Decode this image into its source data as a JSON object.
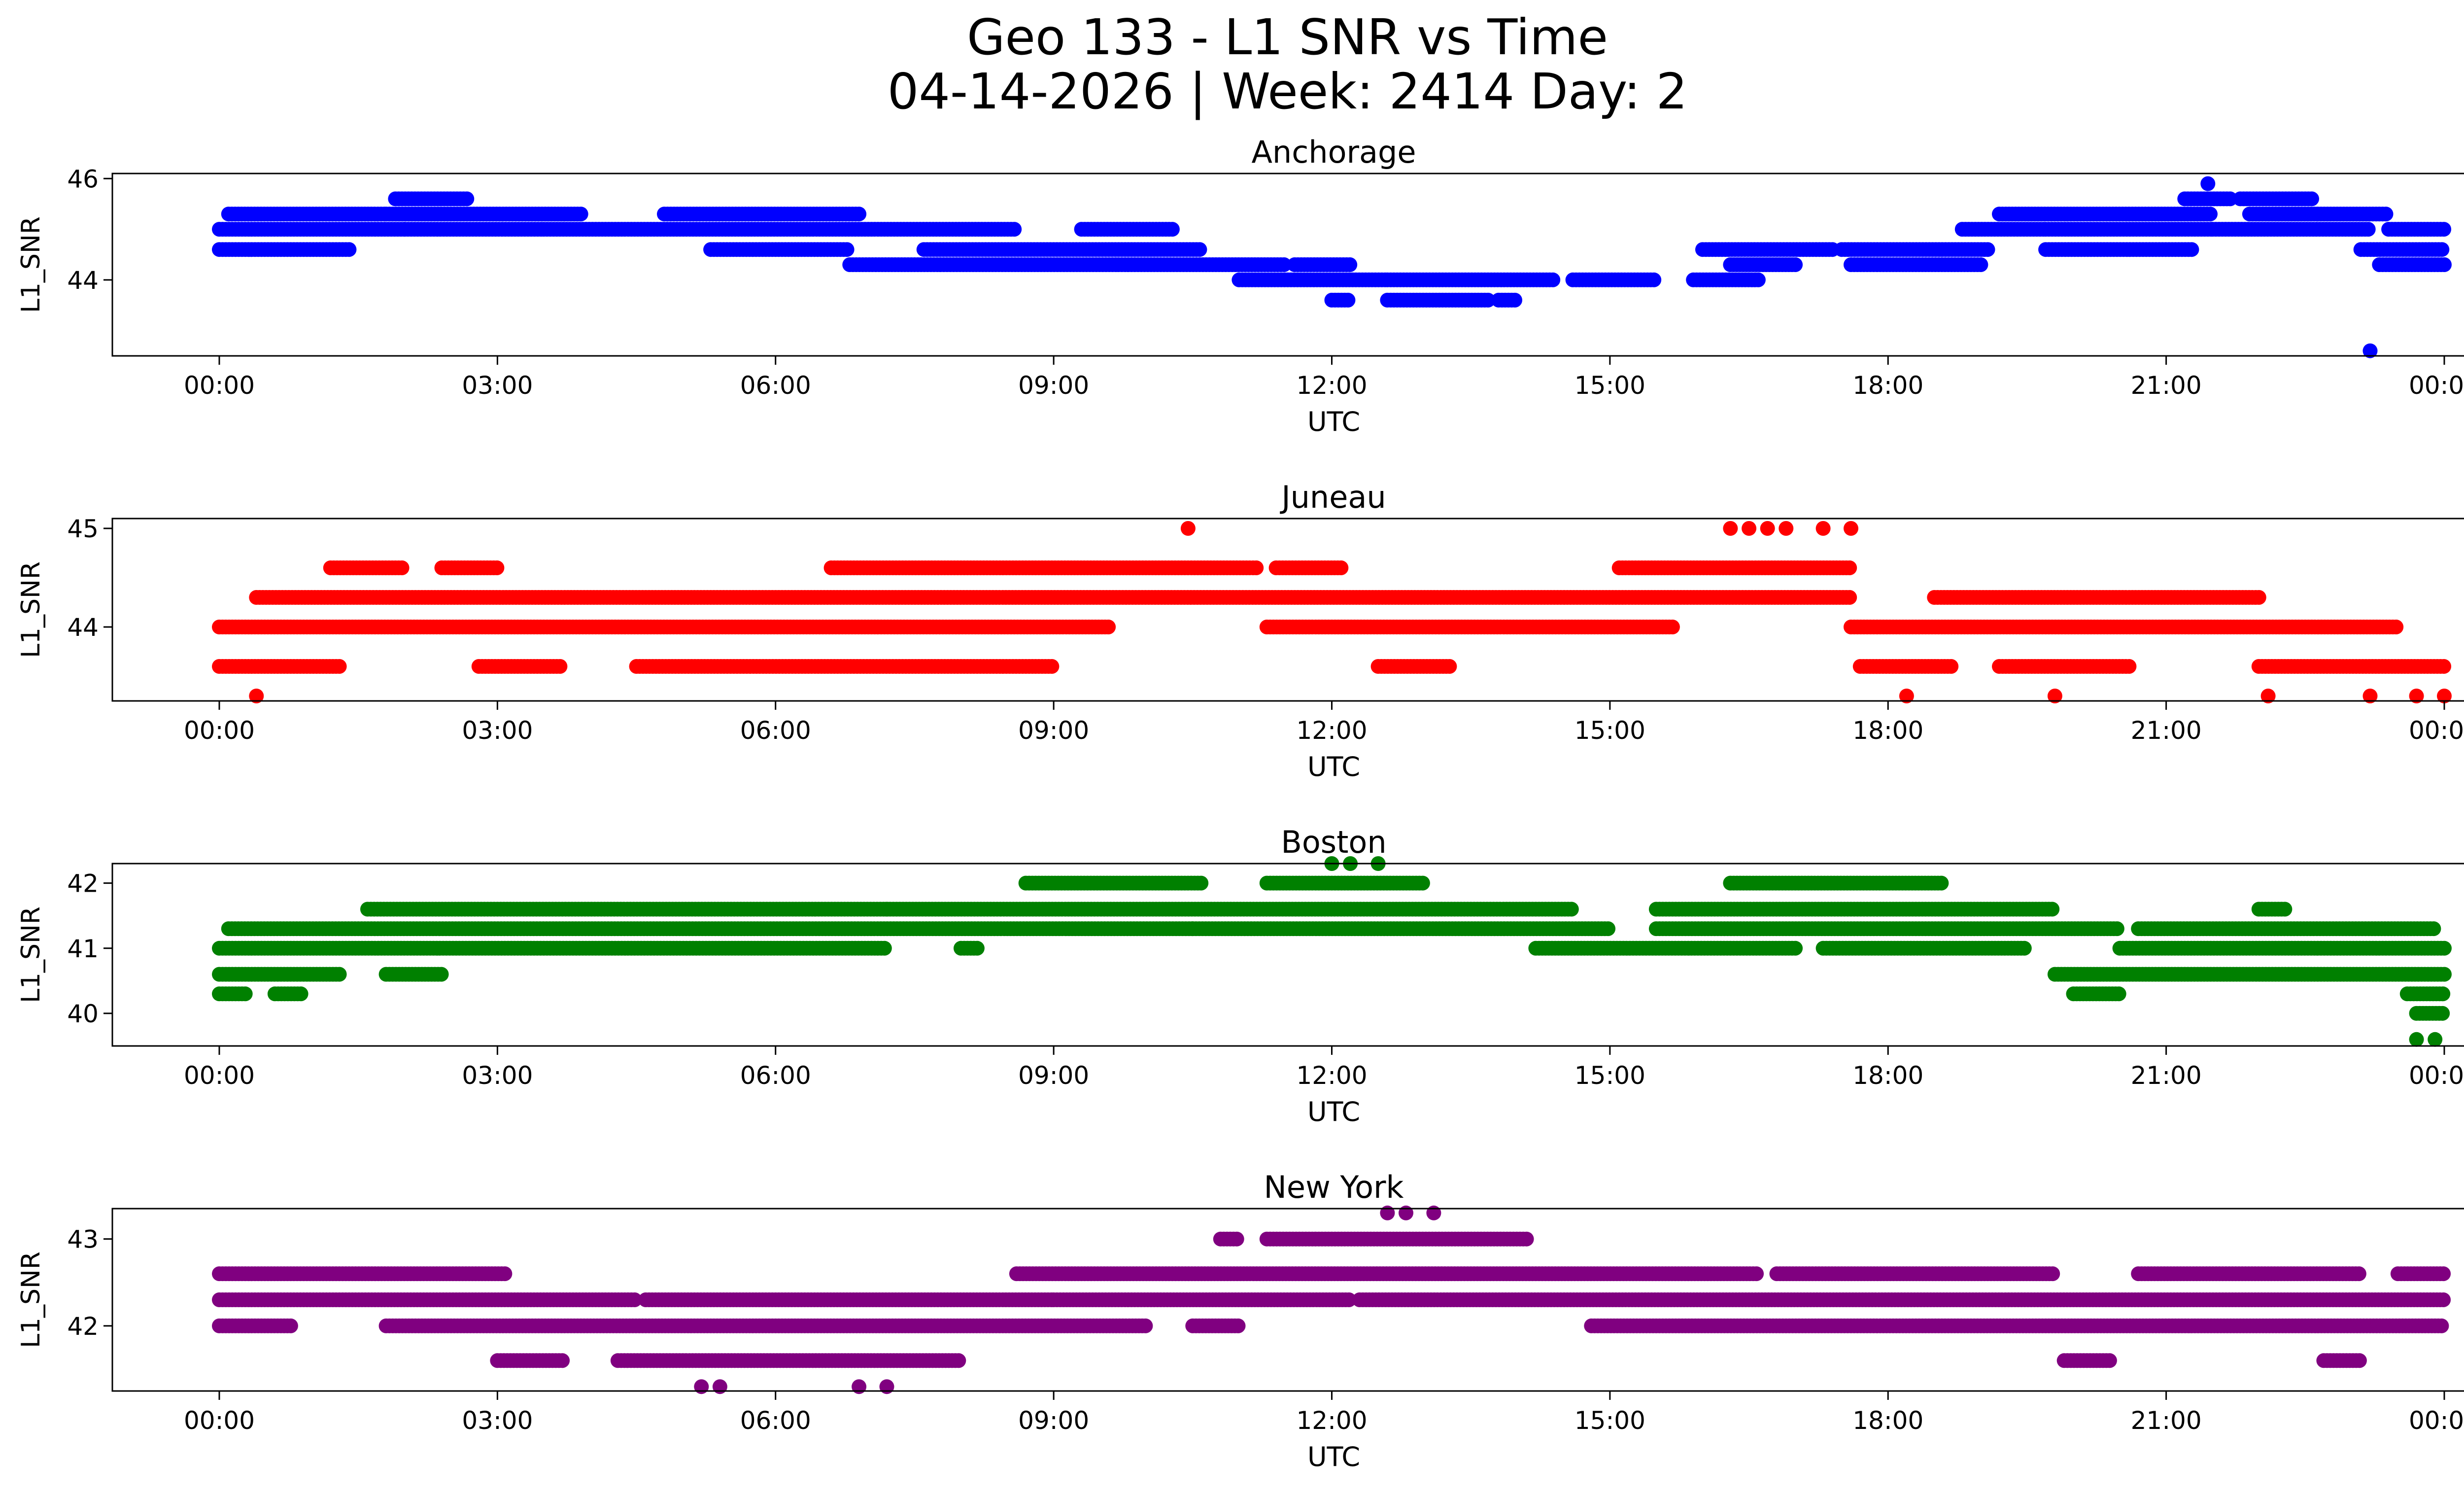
{
  "figure": {
    "title_line1": "Geo 133 - L1 SNR vs Time",
    "title_line2": "04-14-2026 | Week: 2414 Day: 2"
  },
  "chart_data": [
    {
      "type": "scatter",
      "title": "Anchorage",
      "xlabel": "UTC",
      "ylabel": "L1_SNR",
      "color": "#0000ff",
      "xticks": [
        "00:00",
        "03:00",
        "06:00",
        "09:00",
        "12:00",
        "15:00",
        "18:00",
        "21:00",
        "00:00"
      ],
      "yticks": [
        44,
        46
      ],
      "ytick_labels": [
        "44",
        "46"
      ],
      "ylim": [
        42.5,
        46.1
      ],
      "series": [
        {
          "name": "44.6",
          "segments": [
            [
              0.0,
              1.4
            ],
            [
              5.3,
              6.8
            ],
            [
              7.6,
              10.6
            ],
            [
              16.0,
              17.4
            ],
            [
              17.5,
              19.1
            ],
            [
              19.7,
              21.3
            ],
            [
              23.1,
              24.0
            ]
          ]
        },
        {
          "name": "45.0",
          "segments": [
            [
              0.0,
              2.0
            ],
            [
              2.0,
              3.5
            ],
            [
              3.5,
              8.6
            ],
            [
              9.3,
              10.3
            ],
            [
              18.8,
              19.7
            ],
            [
              19.7,
              21.5
            ],
            [
              21.5,
              23.2
            ],
            [
              23.4,
              24.0
            ]
          ]
        },
        {
          "name": "45.3",
          "segments": [
            [
              0.1,
              1.8
            ],
            [
              1.8,
              3.9
            ],
            [
              4.8,
              6.9
            ],
            [
              19.2,
              21.5
            ],
            [
              21.9,
              23.4
            ]
          ]
        },
        {
          "name": "45.6",
          "segments": [
            [
              1.9,
              2.7
            ],
            [
              21.2,
              21.7
            ],
            [
              21.8,
              22.6
            ]
          ]
        },
        {
          "name": "44.3",
          "segments": [
            [
              6.8,
              9.7
            ],
            [
              9.7,
              11.5
            ],
            [
              11.6,
              12.2
            ],
            [
              16.3,
              17.0
            ],
            [
              17.6,
              19.0
            ],
            [
              23.3,
              24.0
            ]
          ]
        },
        {
          "name": "44.0",
          "segments": [
            [
              11.0,
              12.6
            ],
            [
              12.6,
              14.4
            ],
            [
              14.6,
              15.5
            ],
            [
              15.9,
              16.6
            ]
          ]
        },
        {
          "name": "43.6",
          "segments": [
            [
              12.0,
              12.2
            ],
            [
              12.6,
              13.7
            ],
            [
              13.8,
              14.0
            ]
          ]
        },
        {
          "name": "45.9",
          "points": [
            21.45
          ]
        },
        {
          "name": "42.6",
          "points": [
            23.2
          ]
        }
      ]
    },
    {
      "type": "scatter",
      "title": "Juneau",
      "xlabel": "UTC",
      "ylabel": "L1_SNR",
      "color": "#ff0000",
      "xticks": [
        "00:00",
        "03:00",
        "06:00",
        "09:00",
        "12:00",
        "15:00",
        "18:00",
        "21:00",
        "00:00"
      ],
      "yticks": [
        44,
        45
      ],
      "ytick_labels": [
        "44",
        "45"
      ],
      "ylim": [
        43.25,
        45.1
      ],
      "series": [
        {
          "name": "44.0",
          "segments": [
            [
              0.0,
              9.6
            ],
            [
              11.3,
              15.7
            ],
            [
              17.6,
              23.5
            ]
          ]
        },
        {
          "name": "44.3",
          "segments": [
            [
              0.4,
              17.6
            ],
            [
              18.5,
              22.0
            ]
          ]
        },
        {
          "name": "44.6",
          "segments": [
            [
              1.2,
              2.0
            ],
            [
              2.4,
              3.0
            ],
            [
              6.6,
              11.2
            ],
            [
              11.4,
              12.1
            ],
            [
              15.1,
              17.6
            ]
          ]
        },
        {
          "name": "43.6",
          "segments": [
            [
              0.0,
              1.3
            ],
            [
              2.8,
              3.7
            ],
            [
              4.5,
              9.0
            ],
            [
              12.5,
              13.3
            ],
            [
              17.7,
              18.7
            ],
            [
              19.2,
              20.6
            ],
            [
              22.0,
              24.0
            ]
          ]
        },
        {
          "name": "45.0",
          "points": [
            10.45,
            16.3,
            16.5,
            16.7,
            16.9,
            17.3,
            17.6
          ]
        },
        {
          "name": "43.3",
          "points": [
            0.4,
            18.2,
            19.8,
            22.1,
            23.2,
            23.7,
            24.0
          ]
        }
      ]
    },
    {
      "type": "scatter",
      "title": "Boston",
      "xlabel": "UTC",
      "ylabel": "L1_SNR",
      "color": "#008000",
      "xticks": [
        "00:00",
        "03:00",
        "06:00",
        "09:00",
        "12:00",
        "15:00",
        "18:00",
        "21:00",
        "00:00"
      ],
      "yticks": [
        40,
        41,
        42
      ],
      "ytick_labels": [
        "40",
        "41",
        "42"
      ],
      "ylim": [
        39.5,
        42.3
      ],
      "series": [
        {
          "name": "41.0",
          "segments": [
            [
              0.0,
              7.2
            ],
            [
              8.0,
              8.2
            ],
            [
              14.2,
              17.0
            ],
            [
              17.3,
              19.5
            ],
            [
              20.5,
              24.0
            ]
          ]
        },
        {
          "name": "41.3",
          "segments": [
            [
              0.1,
              10.5
            ],
            [
              10.5,
              15.0
            ],
            [
              15.5,
              20.5
            ],
            [
              20.7,
              23.9
            ]
          ]
        },
        {
          "name": "41.6",
          "segments": [
            [
              1.6,
              7.2
            ],
            [
              7.2,
              14.6
            ],
            [
              15.5,
              19.8
            ],
            [
              22.0,
              22.3
            ]
          ]
        },
        {
          "name": "42.0",
          "segments": [
            [
              8.7,
              10.6
            ],
            [
              11.3,
              13.0
            ],
            [
              16.3,
              18.6
            ]
          ]
        },
        {
          "name": "40.6",
          "segments": [
            [
              0.0,
              1.3
            ],
            [
              1.8,
              2.4
            ],
            [
              19.8,
              24.0
            ]
          ]
        },
        {
          "name": "40.3",
          "segments": [
            [
              0.0,
              0.3
            ],
            [
              0.6,
              0.9
            ],
            [
              20.0,
              20.5
            ],
            [
              23.6,
              24.0
            ]
          ]
        },
        {
          "name": "40.0",
          "segments": [
            [
              23.7,
              24.0
            ]
          ]
        },
        {
          "name": "39.6",
          "points": [
            23.7,
            23.9
          ]
        },
        {
          "name": "42.3",
          "points": [
            12.0,
            12.2,
            12.5
          ]
        }
      ]
    },
    {
      "type": "scatter",
      "title": "New York",
      "xlabel": "UTC",
      "ylabel": "L1_SNR",
      "color": "#800080",
      "xticks": [
        "00:00",
        "03:00",
        "06:00",
        "09:00",
        "12:00",
        "15:00",
        "18:00",
        "21:00",
        "00:00"
      ],
      "yticks": [
        42,
        43
      ],
      "ytick_labels": [
        "42",
        "43"
      ],
      "ylim": [
        41.25,
        43.35
      ],
      "series": [
        {
          "name": "42.3",
          "segments": [
            [
              0.0,
              4.5
            ],
            [
              4.6,
              9.0
            ],
            [
              9.0,
              12.2
            ],
            [
              12.3,
              24.0
            ]
          ]
        },
        {
          "name": "42.0",
          "segments": [
            [
              0.0,
              0.8
            ],
            [
              1.8,
              10.0
            ],
            [
              10.5,
              11.0
            ],
            [
              14.8,
              24.0
            ]
          ]
        },
        {
          "name": "42.6",
          "segments": [
            [
              0.0,
              3.1
            ],
            [
              8.6,
              16.6
            ],
            [
              16.8,
              19.8
            ],
            [
              20.7,
              23.1
            ],
            [
              23.5,
              24.0
            ]
          ]
        },
        {
          "name": "41.6",
          "segments": [
            [
              3.0,
              3.7
            ],
            [
              4.3,
              8.0
            ],
            [
              19.9,
              20.4
            ],
            [
              22.7,
              23.1
            ]
          ]
        },
        {
          "name": "43.0",
          "segments": [
            [
              10.8,
              11.0
            ],
            [
              11.3,
              14.1
            ]
          ]
        },
        {
          "name": "43.3",
          "points": [
            12.6,
            12.8,
            13.1
          ]
        },
        {
          "name": "41.3",
          "points": [
            5.2,
            5.4,
            6.9,
            7.2
          ]
        }
      ]
    }
  ]
}
